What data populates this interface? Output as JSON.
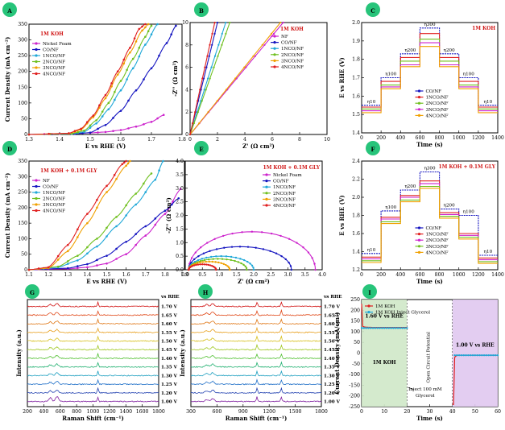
{
  "chart_data": [
    {
      "panel": "A",
      "type": "line",
      "xlabel": "E vs RHE (V)",
      "ylabel": "Current Density (mA cm⁻²)",
      "xlim": [
        1.3,
        1.8
      ],
      "ylim": [
        0,
        350
      ],
      "xticks": [
        1.3,
        1.4,
        1.5,
        1.6,
        1.7,
        1.8
      ],
      "xtick_labels": [
        "1.3",
        "1.4",
        "1.5",
        "1.6",
        "1.7",
        "1.8"
      ],
      "yticks": [
        0,
        50,
        100,
        150,
        200,
        250,
        300,
        350
      ],
      "annotations": [
        "1M KOH"
      ],
      "series": [
        {
          "name": "Nickel Foam",
          "color": "#cc22cc",
          "x": [
            1.3,
            1.4,
            1.5,
            1.55,
            1.6,
            1.65,
            1.7,
            1.74
          ],
          "y": [
            0,
            2,
            5,
            8,
            14,
            25,
            40,
            62
          ]
        },
        {
          "name": "CO/NF",
          "color": "#1515c0",
          "x": [
            1.3,
            1.45,
            1.5,
            1.55,
            1.6,
            1.65,
            1.7,
            1.75,
            1.78
          ],
          "y": [
            0,
            2,
            6,
            30,
            75,
            140,
            210,
            290,
            345
          ]
        },
        {
          "name": "1NCO/NF",
          "color": "#20a8d8",
          "x": [
            1.3,
            1.44,
            1.48,
            1.52,
            1.56,
            1.6,
            1.64,
            1.68,
            1.72
          ],
          "y": [
            0,
            2,
            8,
            35,
            80,
            140,
            210,
            285,
            350
          ]
        },
        {
          "name": "2NCO/NF",
          "color": "#70c020",
          "x": [
            1.3,
            1.44,
            1.48,
            1.52,
            1.56,
            1.6,
            1.64,
            1.68,
            1.7
          ],
          "y": [
            0,
            3,
            12,
            45,
            100,
            170,
            240,
            310,
            345
          ]
        },
        {
          "name": "3NCO/NF",
          "color": "#f0a000",
          "x": [
            1.3,
            1.43,
            1.47,
            1.51,
            1.55,
            1.59,
            1.63,
            1.67,
            1.69
          ],
          "y": [
            0,
            3,
            15,
            55,
            115,
            190,
            260,
            330,
            350
          ]
        },
        {
          "name": "4NCO/NF",
          "color": "#e02020",
          "x": [
            1.3,
            1.43,
            1.47,
            1.51,
            1.55,
            1.59,
            1.63,
            1.66,
            1.68
          ],
          "y": [
            0,
            4,
            18,
            60,
            125,
            200,
            275,
            335,
            350
          ]
        }
      ]
    },
    {
      "panel": "B",
      "type": "scatter",
      "xlabel": "Z' (Ω cm²)",
      "ylabel": "-Z'' (Ω cm²)",
      "xlim": [
        0,
        10
      ],
      "ylim": [
        0,
        10
      ],
      "xticks": [
        0,
        2,
        4,
        6,
        8,
        10
      ],
      "yticks": [
        0,
        2,
        4,
        6,
        8,
        10
      ],
      "annotations": [
        "1M KOH"
      ],
      "series": [
        {
          "name": "NF",
          "color": "#cc22cc",
          "x": [
            0,
            6.8
          ],
          "y": [
            0,
            10
          ]
        },
        {
          "name": "CO/NF",
          "color": "#1515c0",
          "x": [
            0,
            2.0
          ],
          "y": [
            0,
            10
          ]
        },
        {
          "name": "1NCO/NF",
          "color": "#20a8d8",
          "x": [
            0,
            2.6
          ],
          "y": [
            0,
            10
          ]
        },
        {
          "name": "2NCO/NF",
          "color": "#70c020",
          "x": [
            0,
            2.9
          ],
          "y": [
            0,
            10
          ]
        },
        {
          "name": "3NCO/NF",
          "color": "#f0a000",
          "x": [
            0,
            6.6
          ],
          "y": [
            0,
            10
          ]
        },
        {
          "name": "4NCO/NF",
          "color": "#e02020",
          "x": [
            0,
            1.8
          ],
          "y": [
            0,
            10
          ]
        }
      ]
    },
    {
      "panel": "C",
      "type": "line",
      "xlabel": "Time (s)",
      "ylabel": "E vs RHE (V)",
      "xlim": [
        0,
        1400
      ],
      "ylim": [
        1.4,
        2.0
      ],
      "xticks": [
        0,
        200,
        400,
        600,
        800,
        1000,
        1200,
        1400
      ],
      "yticks": [
        1.4,
        1.5,
        1.6,
        1.7,
        1.8,
        1.9,
        2.0
      ],
      "ytick_labels": [
        "1.4",
        "1.5",
        "1.6",
        "1.7",
        "1.8",
        "1.9",
        "2.0"
      ],
      "annotations": [
        "1M KOH"
      ],
      "step_labels": [
        "η10",
        "η100",
        "η200",
        "η300",
        "η200",
        "η100",
        "η10"
      ],
      "series": [
        {
          "name": "CO/NF",
          "color": "#1515c0",
          "steps": [
            1.55,
            1.7,
            1.83,
            1.97,
            1.83,
            1.7,
            1.55
          ]
        },
        {
          "name": "1NCO/NF",
          "color": "#e02020",
          "steps": [
            1.54,
            1.68,
            1.81,
            1.94,
            1.81,
            1.68,
            1.54
          ]
        },
        {
          "name": "2NCO/NF",
          "color": "#70c020",
          "steps": [
            1.53,
            1.66,
            1.79,
            1.91,
            1.79,
            1.66,
            1.53
          ]
        },
        {
          "name": "3NCO/NF",
          "color": "#cc22cc",
          "steps": [
            1.52,
            1.65,
            1.77,
            1.89,
            1.77,
            1.65,
            1.52
          ]
        },
        {
          "name": "4NCO/NF",
          "color": "#f0a000",
          "steps": [
            1.51,
            1.64,
            1.76,
            1.87,
            1.76,
            1.64,
            1.51
          ]
        }
      ]
    },
    {
      "panel": "D",
      "type": "line",
      "xlabel": "E vs RHE (V)",
      "ylabel": "Current Density (mA cm⁻²)",
      "xlim": [
        1.1,
        1.9
      ],
      "ylim": [
        0,
        350
      ],
      "xticks": [
        1.1,
        1.2,
        1.3,
        1.4,
        1.5,
        1.6,
        1.7,
        1.8,
        1.9
      ],
      "xtick_labels": [
        "1.1",
        "1.2",
        "1.3",
        "1.4",
        "1.5",
        "1.6",
        "1.7",
        "1.8",
        "1.9"
      ],
      "yticks": [
        0,
        50,
        100,
        150,
        200,
        250,
        300,
        350
      ],
      "annotations": [
        "1M KOH + 0.1M GLY"
      ],
      "series": [
        {
          "name": "NF",
          "color": "#cc22cc",
          "x": [
            1.1,
            1.3,
            1.4,
            1.5,
            1.6,
            1.7,
            1.8,
            1.88
          ],
          "y": [
            0,
            3,
            8,
            20,
            50,
            110,
            180,
            260
          ]
        },
        {
          "name": "CO/NF",
          "color": "#1515c0",
          "x": [
            1.1,
            1.3,
            1.4,
            1.5,
            1.6,
            1.7,
            1.8,
            1.87
          ],
          "y": [
            0,
            5,
            18,
            45,
            90,
            140,
            190,
            230
          ]
        },
        {
          "name": "1NCO/NF",
          "color": "#20a8d8",
          "x": [
            1.1,
            1.25,
            1.35,
            1.45,
            1.55,
            1.65,
            1.75,
            1.79
          ],
          "y": [
            0,
            8,
            30,
            75,
            140,
            210,
            290,
            350
          ]
        },
        {
          "name": "2NCO/NF",
          "color": "#70c020",
          "x": [
            1.1,
            1.25,
            1.35,
            1.45,
            1.55,
            1.65,
            1.73
          ],
          "y": [
            0,
            10,
            45,
            100,
            170,
            245,
            310
          ]
        },
        {
          "name": "3NCO/NF",
          "color": "#f0a000",
          "x": [
            1.1,
            1.2,
            1.3,
            1.4,
            1.5,
            1.6,
            1.62
          ],
          "y": [
            0,
            5,
            60,
            150,
            250,
            335,
            350
          ]
        },
        {
          "name": "4NCO/NF",
          "color": "#e02020",
          "x": [
            1.1,
            1.2,
            1.3,
            1.4,
            1.5,
            1.58,
            1.6
          ],
          "y": [
            0,
            8,
            80,
            180,
            270,
            340,
            350
          ]
        }
      ]
    },
    {
      "panel": "E",
      "type": "scatter",
      "xlabel": "Z' (Ω cm²)",
      "ylabel": "-Z'' (Ω cm²)",
      "xlim": [
        0,
        4.0
      ],
      "ylim": [
        0,
        4.0
      ],
      "xticks": [
        0,
        0.5,
        1.0,
        1.5,
        2.0,
        2.5,
        3.0,
        3.5,
        4.0
      ],
      "xtick_labels": [
        "0.0",
        "0.5",
        "1.0",
        "1.5",
        "2.0",
        "2.5",
        "3.0",
        "3.5",
        "4.0"
      ],
      "yticks": [
        0,
        0.5,
        1.0,
        1.5,
        2.0,
        2.5,
        3.0,
        3.5,
        4.0
      ],
      "ytick_labels": [
        "0.0",
        "0.5",
        "1.0",
        "1.5",
        "2.0",
        "2.5",
        "3.0",
        "3.5",
        "4.0"
      ],
      "annotations": [
        "1M KOH + 0.1M GLY"
      ],
      "series": [
        {
          "name": "Nickel Foam",
          "color": "#cc22cc",
          "start": 0.1,
          "end": 3.8,
          "peak": 1.4
        },
        {
          "name": "CO/NF",
          "color": "#1515c0",
          "start": 0.1,
          "end": 3.1,
          "peak": 0.85
        },
        {
          "name": "1NCO/NF",
          "color": "#20a8d8",
          "start": 0.1,
          "end": 2.0,
          "peak": 0.5
        },
        {
          "name": "2NCO/NF",
          "color": "#70c020",
          "start": 0.1,
          "end": 1.8,
          "peak": 0.4
        },
        {
          "name": "3NCO/NF",
          "color": "#f0a000",
          "start": 0.1,
          "end": 1.3,
          "peak": 0.3
        },
        {
          "name": "4NCO/NF",
          "color": "#e02020",
          "start": 0.1,
          "end": 0.9,
          "peak": 0.2
        }
      ]
    },
    {
      "panel": "F",
      "type": "line",
      "xlabel": "Time (s)",
      "ylabel": "E vs RHE (V)",
      "xlim": [
        0,
        1400
      ],
      "ylim": [
        1.2,
        2.4
      ],
      "xticks": [
        0,
        200,
        400,
        600,
        800,
        1000,
        1200,
        1400
      ],
      "yticks": [
        1.2,
        1.4,
        1.6,
        1.8,
        2.0,
        2.2,
        2.4
      ],
      "ytick_labels": [
        "1.2",
        "1.4",
        "1.6",
        "1.8",
        "2.0",
        "2.2",
        "2.4"
      ],
      "annotations": [
        "1M KOH + 0.1M GLY"
      ],
      "step_labels": [
        "η10",
        "η100",
        "η200",
        "η300",
        "η200",
        "η100",
        "η10"
      ],
      "series": [
        {
          "name": "CO/NF",
          "color": "#1515c0",
          "steps": [
            1.38,
            1.85,
            2.08,
            2.28,
            1.87,
            1.8,
            1.36
          ]
        },
        {
          "name": "1NCO/NF",
          "color": "#e02020",
          "steps": [
            1.34,
            1.78,
            2.02,
            2.18,
            1.83,
            1.6,
            1.33
          ]
        },
        {
          "name": "2NCO/NF",
          "color": "#cc22cc",
          "steps": [
            1.32,
            1.76,
            2.0,
            2.15,
            1.81,
            1.58,
            1.31
          ]
        },
        {
          "name": "3NCO/NF",
          "color": "#70c020",
          "steps": [
            1.3,
            1.73,
            1.97,
            2.12,
            1.79,
            1.56,
            1.29
          ]
        },
        {
          "name": "4NCO/NF",
          "color": "#f0a000",
          "steps": [
            1.28,
            1.71,
            1.95,
            2.1,
            1.77,
            1.54,
            1.27
          ]
        }
      ]
    },
    {
      "panel": "G",
      "type": "line",
      "xlabel": "Raman Shift (cm⁻¹)",
      "ylabel": "Intensity (a.u.)",
      "xlim": [
        200,
        1800
      ],
      "xticks": [
        200,
        400,
        600,
        800,
        1000,
        1200,
        1400,
        1600,
        1800
      ],
      "legend_title": "vs RHE",
      "potentials": [
        "1.70 V",
        "1.65 V",
        "1.60 V",
        "1.55 V",
        "1.50 V",
        "1.45 V",
        "1.40 V",
        "1.35 V",
        "1.30 V",
        "1.25 V",
        "1.20 V",
        "1.00 V"
      ],
      "colors": [
        "#d01010",
        "#e04818",
        "#e07818",
        "#e8a020",
        "#d8c020",
        "#a0c820",
        "#50c030",
        "#20b070",
        "#20a0c0",
        "#2070c8",
        "#2040b0",
        "#8020a0"
      ],
      "peaks_cm": [
        480,
        560,
        1060
      ]
    },
    {
      "panel": "H",
      "type": "line",
      "xlabel": "Raman Shift (cm⁻¹)",
      "ylabel": "Intensity (a.u.)",
      "xlim": [
        300,
        1800
      ],
      "xticks": [
        300,
        600,
        900,
        1200,
        1500,
        1800
      ],
      "legend_title": "vs RHE",
      "potentials": [
        "1.70 V",
        "1.65 V",
        "1.60 V",
        "1.55 V",
        "1.50 V",
        "1.45 V",
        "1.40 V",
        "1.35 V",
        "1.30 V",
        "1.25 V",
        "1.20 V",
        "1.00 V"
      ],
      "colors": [
        "#d01010",
        "#e04818",
        "#e07818",
        "#e8a020",
        "#d8c020",
        "#a0c820",
        "#50c030",
        "#20b070",
        "#20a0c0",
        "#2070c8",
        "#2040b0",
        "#8020a0"
      ],
      "peaks_cm": [
        480,
        550,
        1060,
        1340
      ]
    },
    {
      "panel": "I",
      "type": "line",
      "xlabel": "Time (s)",
      "ylabel": "Current Density (mA/cm²)",
      "xlim": [
        0,
        60
      ],
      "ylim": [
        -250,
        250
      ],
      "xticks": [
        0,
        10,
        20,
        30,
        40,
        50,
        60
      ],
      "yticks": [
        -250,
        -200,
        -150,
        -100,
        -50,
        0,
        50,
        100,
        150,
        200,
        250
      ],
      "annotations": [
        "1.60 V vs RHE",
        "1M KOH",
        "Open Circuit Potential",
        "Inject 100 mM Glycerol",
        "1.00 V vs RHE"
      ],
      "series": [
        {
          "name": "1M KOH",
          "color": "#e02020"
        },
        {
          "name": "1M KOH Inject Glycerol",
          "color": "#20a8d8"
        }
      ],
      "segments": {
        "step1_time": [
          0,
          20
        ],
        "step1_current": 120,
        "step2_time": [
          40,
          60
        ],
        "step2_current": -10
      }
    }
  ]
}
